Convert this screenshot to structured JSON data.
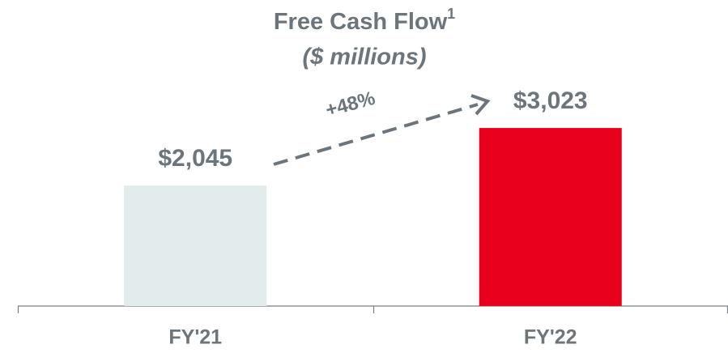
{
  "chart_data": {
    "type": "bar",
    "title": "Free Cash Flow",
    "title_superscript": "1",
    "subtitle": "($ millions)",
    "categories": [
      "FY'21",
      "FY'22"
    ],
    "values": [
      2045,
      3023
    ],
    "value_labels": [
      "$2,045",
      "$3,023"
    ],
    "colors": [
      "#e3ecec",
      "#e8001c"
    ],
    "ylim": [
      0,
      4000
    ],
    "annotation": "+48%"
  }
}
